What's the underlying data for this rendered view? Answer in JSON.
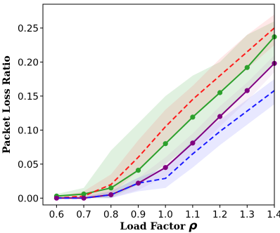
{
  "chart_data": {
    "type": "line",
    "xlabel": "Load Factor",
    "xlabel_symbol": "ρ",
    "ylabel": "Packet Loss Ratio",
    "xlim": [
      0.55,
      1.4
    ],
    "ylim": [
      -0.01,
      0.285
    ],
    "x": [
      0.6,
      0.7,
      0.8,
      0.9,
      1.0,
      1.1,
      1.2,
      1.3,
      1.4
    ],
    "xticks": [
      "0.6",
      "0.7",
      "0.8",
      "0.9",
      "1.0",
      "1.1",
      "1.2",
      "1.3",
      "1.4"
    ],
    "yticks": [
      "0.00",
      "0.05",
      "0.10",
      "0.15",
      "0.20",
      "0.25"
    ],
    "ytick_values": [
      0,
      0.05,
      0.1,
      0.15,
      0.2,
      0.25
    ],
    "grid": false,
    "legend": "none",
    "series": [
      {
        "color": "#2ca02c",
        "style": "solid",
        "marker": "circle",
        "values": [
          0.003,
          0.006,
          0.015,
          0.041,
          0.08,
          0.119,
          0.155,
          0.192,
          0.237
        ],
        "band_upper": [
          0.006,
          0.015,
          0.07,
          0.11,
          0.15,
          0.18,
          0.2,
          0.24,
          0.26
        ],
        "band_lower": [
          0.0,
          0.0,
          0.0,
          0.02,
          0.05,
          0.08,
          0.12,
          0.16,
          0.2
        ],
        "band_color": "#2ca02c"
      },
      {
        "color": "#ff1a1a",
        "style": "dashed",
        "marker": "none",
        "values": [
          0.0,
          0.003,
          0.02,
          0.06,
          0.105,
          0.145,
          0.18,
          0.215,
          0.25
        ],
        "band_upper": [
          0.002,
          0.01,
          0.035,
          0.085,
          0.13,
          0.165,
          0.205,
          0.24,
          0.27
        ],
        "band_lower": [
          0.0,
          0.0,
          0.005,
          0.04,
          0.08,
          0.12,
          0.155,
          0.19,
          0.225
        ],
        "band_color": "#ff6666"
      },
      {
        "color": "#800080",
        "style": "solid",
        "marker": "circle",
        "values": [
          0.0,
          0.0,
          0.005,
          0.022,
          0.045,
          0.081,
          0.12,
          0.158,
          0.198
        ],
        "band_upper": [
          0.002,
          0.003,
          0.01,
          0.03,
          0.06,
          0.095,
          0.135,
          0.17,
          0.21
        ],
        "band_lower": [
          0.0,
          0.0,
          0.0,
          0.012,
          0.032,
          0.065,
          0.105,
          0.143,
          0.185
        ],
        "band_color": "#cc99cc"
      },
      {
        "color": "#1a1aff",
        "style": "dashed",
        "marker": "none",
        "values": [
          0.0,
          0.0,
          0.005,
          0.022,
          0.029,
          0.065,
          0.098,
          0.128,
          0.158
        ],
        "band_upper": [
          0.001,
          0.002,
          0.01,
          0.03,
          0.045,
          0.085,
          0.115,
          0.145,
          0.175
        ],
        "band_lower": [
          0.0,
          0.0,
          0.0,
          0.01,
          0.015,
          0.045,
          0.078,
          0.108,
          0.138
        ],
        "band_color": "#6666ff"
      }
    ]
  }
}
